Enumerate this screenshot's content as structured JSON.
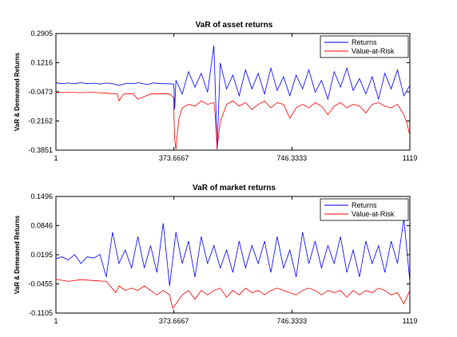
{
  "chart_data": [
    {
      "type": "line",
      "title": "VaR of asset returns",
      "ylabel": "VaR & Demeaned Returns",
      "xlabel": "",
      "xlim": [
        1,
        1119
      ],
      "ylim": [
        -0.3851,
        0.2905
      ],
      "x_ticks": [
        "1",
        "373.6667",
        "746.3333",
        "1119"
      ],
      "y_ticks": [
        "0.2905",
        "0.1216",
        "-0.0473",
        "-0.2162",
        "-0.3851"
      ],
      "legend_position": "top-right",
      "series": [
        {
          "name": "Returns",
          "color": "#0000ff",
          "x": [
            1,
            20,
            40,
            60,
            80,
            100,
            120,
            140,
            160,
            180,
            200,
            220,
            240,
            250,
            260,
            290,
            300,
            310,
            320,
            340,
            360,
            373,
            374,
            376,
            380,
            400,
            420,
            440,
            460,
            480,
            500,
            505,
            510,
            520,
            540,
            560,
            580,
            600,
            620,
            640,
            660,
            680,
            700,
            720,
            740,
            760,
            780,
            800,
            820,
            840,
            860,
            880,
            900,
            920,
            940,
            960,
            980,
            1000,
            1020,
            1040,
            1060,
            1080,
            1100,
            1119
          ],
          "values": [
            0.005,
            0.0,
            0.004,
            0.0,
            0.006,
            0.0,
            0.003,
            -0.002,
            0.004,
            0.0,
            -0.01,
            0.0,
            0.003,
            0.0,
            0.006,
            -0.005,
            0.0,
            0.005,
            0.002,
            0.0,
            0.0,
            -0.003,
            -0.03,
            -0.15,
            0.02,
            -0.06,
            0.07,
            -0.02,
            0.06,
            -0.05,
            0.22,
            -0.06,
            -0.38,
            0.12,
            -0.03,
            0.05,
            -0.07,
            0.08,
            -0.03,
            0.06,
            -0.06,
            0.09,
            -0.04,
            0.04,
            -0.07,
            0.05,
            -0.03,
            0.08,
            -0.05,
            0.02,
            -0.09,
            0.07,
            -0.02,
            0.09,
            -0.04,
            0.03,
            -0.06,
            0.04,
            -0.09,
            0.06,
            -0.03,
            0.08,
            -0.07,
            -0.01
          ]
        },
        {
          "name": "Value-at-Risk",
          "color": "#ff0000",
          "x": [
            1,
            40,
            80,
            120,
            160,
            195,
            200,
            215,
            230,
            245,
            260,
            300,
            340,
            360,
            373,
            374,
            376,
            380,
            385,
            390,
            400,
            420,
            440,
            460,
            480,
            500,
            505,
            510,
            515,
            520,
            540,
            560,
            580,
            600,
            620,
            640,
            660,
            680,
            700,
            720,
            740,
            760,
            780,
            800,
            820,
            840,
            860,
            880,
            900,
            920,
            940,
            960,
            980,
            1000,
            1020,
            1040,
            1060,
            1080,
            1100,
            1110,
            1119
          ],
          "values": [
            -0.052,
            -0.05,
            -0.052,
            -0.05,
            -0.055,
            -0.06,
            -0.1,
            -0.06,
            -0.058,
            -0.06,
            -0.09,
            -0.06,
            -0.058,
            -0.06,
            -0.08,
            -0.2,
            -0.32,
            -0.38,
            -0.28,
            -0.2,
            -0.14,
            -0.12,
            -0.13,
            -0.1,
            -0.12,
            -0.11,
            -0.2,
            -0.38,
            -0.3,
            -0.22,
            -0.12,
            -0.1,
            -0.13,
            -0.11,
            -0.15,
            -0.12,
            -0.1,
            -0.14,
            -0.11,
            -0.12,
            -0.2,
            -0.14,
            -0.12,
            -0.14,
            -0.11,
            -0.13,
            -0.18,
            -0.13,
            -0.11,
            -0.14,
            -0.12,
            -0.13,
            -0.17,
            -0.12,
            -0.11,
            -0.13,
            -0.14,
            -0.12,
            -0.18,
            -0.23,
            -0.3
          ]
        }
      ]
    },
    {
      "type": "line",
      "title": "VaR of market returns",
      "ylabel": "VaR & Demeaned Returns",
      "xlabel": "",
      "xlim": [
        1,
        1119
      ],
      "ylim": [
        -0.1105,
        0.1496
      ],
      "x_ticks": [
        "1",
        "373.6667",
        "746.3333",
        "1119"
      ],
      "y_ticks": [
        "0.1496",
        "0.0846",
        "0.0195",
        "-0.0455",
        "-0.1105"
      ],
      "legend_position": "top-right",
      "series": [
        {
          "name": "Returns",
          "color": "#0000ff",
          "x": [
            1,
            20,
            40,
            60,
            80,
            100,
            120,
            140,
            160,
            180,
            200,
            220,
            240,
            260,
            280,
            300,
            320,
            340,
            360,
            380,
            400,
            420,
            440,
            460,
            480,
            500,
            520,
            540,
            560,
            580,
            600,
            620,
            640,
            660,
            680,
            700,
            720,
            740,
            760,
            780,
            800,
            820,
            840,
            860,
            880,
            900,
            920,
            940,
            960,
            980,
            1000,
            1020,
            1040,
            1060,
            1080,
            1100,
            1119
          ],
          "values": [
            0.01,
            0.015,
            0.008,
            0.02,
            0.0,
            0.015,
            0.012,
            0.02,
            -0.03,
            0.07,
            0.0,
            0.03,
            -0.01,
            0.06,
            -0.01,
            0.04,
            -0.02,
            0.09,
            -0.05,
            0.07,
            0.0,
            0.05,
            -0.03,
            0.06,
            0.0,
            0.04,
            -0.01,
            0.03,
            -0.02,
            0.05,
            -0.01,
            0.04,
            0.0,
            0.05,
            -0.02,
            0.06,
            -0.01,
            0.03,
            -0.03,
            0.07,
            0.0,
            0.05,
            -0.01,
            0.04,
            0.0,
            0.06,
            -0.02,
            0.03,
            -0.03,
            0.05,
            0.0,
            0.04,
            -0.02,
            0.05,
            0.0,
            0.1,
            -0.04
          ]
        },
        {
          "name": "Value-at-Risk",
          "color": "#ff0000",
          "x": [
            1,
            40,
            80,
            120,
            160,
            190,
            200,
            220,
            240,
            260,
            280,
            300,
            320,
            340,
            360,
            370,
            380,
            400,
            420,
            440,
            460,
            480,
            500,
            520,
            540,
            560,
            580,
            600,
            620,
            640,
            660,
            680,
            700,
            720,
            740,
            760,
            780,
            800,
            820,
            840,
            860,
            880,
            900,
            920,
            940,
            960,
            980,
            1000,
            1020,
            1040,
            1060,
            1080,
            1100,
            1119
          ],
          "values": [
            -0.035,
            -0.04,
            -0.036,
            -0.038,
            -0.04,
            -0.065,
            -0.05,
            -0.06,
            -0.055,
            -0.06,
            -0.05,
            -0.06,
            -0.07,
            -0.06,
            -0.07,
            -0.1,
            -0.09,
            -0.07,
            -0.06,
            -0.08,
            -0.06,
            -0.07,
            -0.06,
            -0.055,
            -0.075,
            -0.06,
            -0.07,
            -0.055,
            -0.065,
            -0.06,
            -0.07,
            -0.06,
            -0.055,
            -0.06,
            -0.065,
            -0.07,
            -0.06,
            -0.055,
            -0.06,
            -0.07,
            -0.06,
            -0.065,
            -0.06,
            -0.075,
            -0.06,
            -0.07,
            -0.06,
            -0.065,
            -0.055,
            -0.06,
            -0.07,
            -0.065,
            -0.09,
            -0.06
          ]
        }
      ]
    }
  ]
}
